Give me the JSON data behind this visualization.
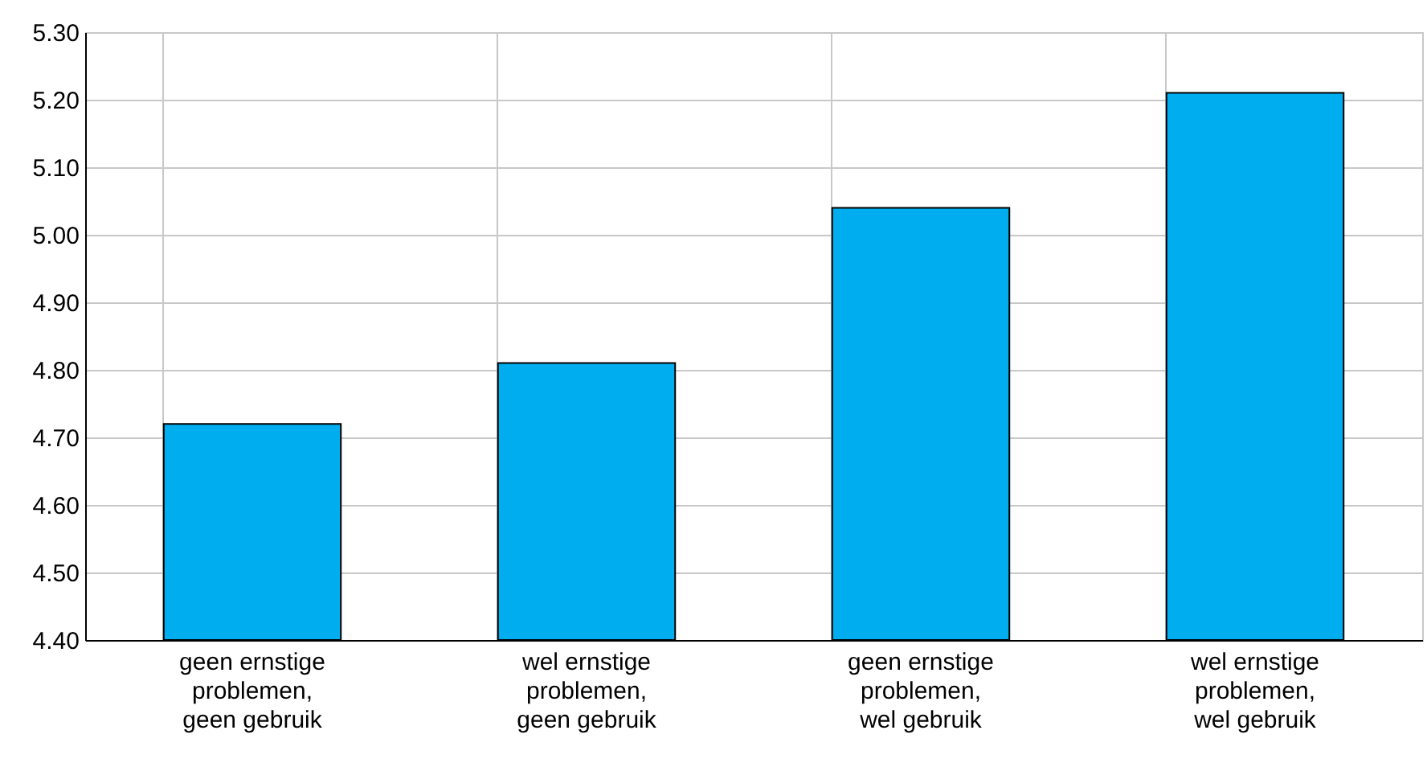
{
  "chart_data": {
    "type": "bar",
    "categories": [
      "geen ernstige problemen, geen gebruik",
      "wel ernstige problemen, geen gebruik",
      "geen ernstige problemen, wel gebruik",
      "wel ernstige problemen, wel gebruik"
    ],
    "values": [
      4.72,
      4.81,
      5.04,
      5.21
    ],
    "color": "#00aeef",
    "ylim": [
      4.4,
      5.3
    ],
    "yticks": [
      {
        "value": 4.4,
        "label": "4.40"
      },
      {
        "value": 4.5,
        "label": "4.50"
      },
      {
        "value": 4.6,
        "label": "4.60"
      },
      {
        "value": 4.7,
        "label": "4.70"
      },
      {
        "value": 4.8,
        "label": "4.80"
      },
      {
        "value": 4.9,
        "label": "4.90"
      },
      {
        "value": 5.0,
        "label": "5.00"
      },
      {
        "value": 5.1,
        "label": "5.10"
      },
      {
        "value": 5.2,
        "label": "5.20"
      },
      {
        "value": 5.3,
        "label": "5.30"
      }
    ],
    "grid": true
  }
}
